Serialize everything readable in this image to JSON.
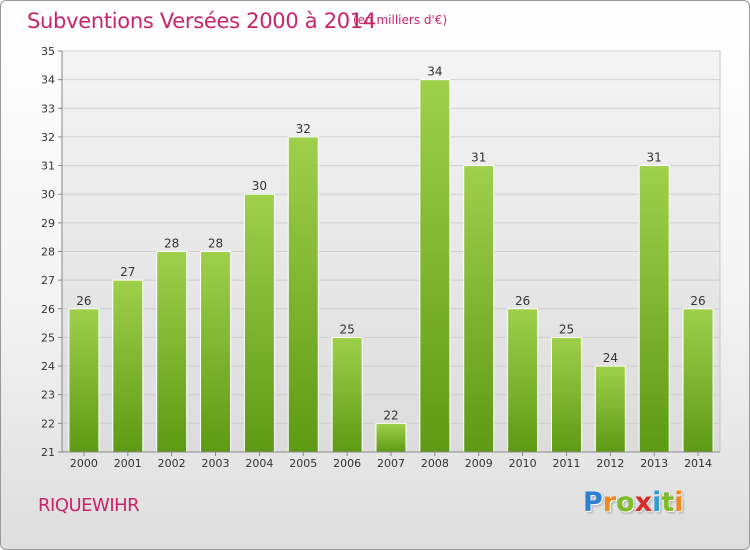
{
  "header": {
    "title": "Subventions Versées 2000 à 2014",
    "subtitle": "(en milliers d'€)"
  },
  "footer": {
    "commune": "RIQUEWIHR",
    "logo": {
      "letters": [
        "P",
        "r",
        "o",
        "x",
        "i",
        "t",
        "i"
      ],
      "colors": [
        "#2f7fd0",
        "#f08a1c",
        "#7dbb2a",
        "#d82c2c",
        "#2f9ed8",
        "#7dbb2a",
        "#f08a1c"
      ]
    }
  },
  "chart_data": {
    "type": "bar",
    "categories": [
      "2000",
      "2001",
      "2002",
      "2003",
      "2004",
      "2005",
      "2006",
      "2007",
      "2008",
      "2009",
      "2010",
      "2011",
      "2012",
      "2013",
      "2014"
    ],
    "values": [
      26,
      27,
      28,
      28,
      30,
      32,
      25,
      22,
      34,
      31,
      26,
      25,
      24,
      31,
      26
    ],
    "ylim": [
      21,
      35
    ],
    "yticks": [
      21,
      22,
      23,
      24,
      25,
      26,
      27,
      28,
      29,
      30,
      31,
      32,
      33,
      34,
      35
    ],
    "grid": true,
    "data_labels": true,
    "bar_color": "#8cc63f"
  }
}
